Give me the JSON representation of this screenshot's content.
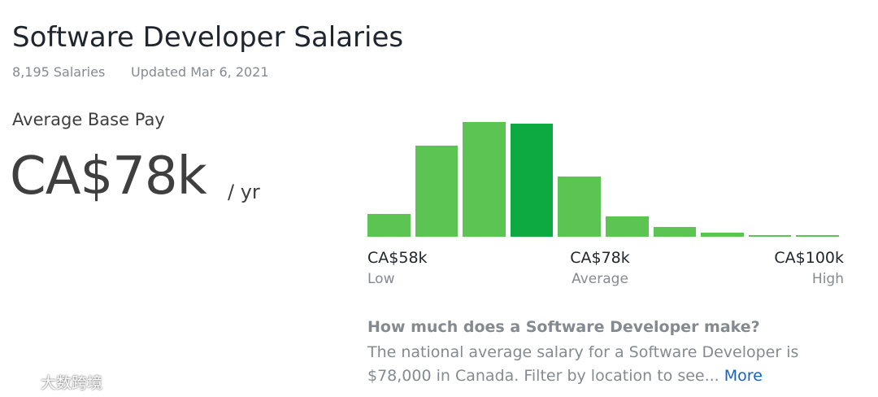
{
  "header": {
    "title": "Software Developer Salaries",
    "count": "8,195 Salaries",
    "updated": "Updated Mar 6, 2021"
  },
  "pay": {
    "label": "Average Base Pay",
    "amount": "CA$78k",
    "unit": "/ yr"
  },
  "histogram": {
    "values": [
      26,
      104,
      131,
      129,
      69,
      23,
      11,
      5,
      2,
      2
    ],
    "highlight": 3,
    "color": "#5bc452",
    "highlight_color": "#0caa41",
    "markers": [
      {
        "amount": "CA$58k",
        "label": "Low"
      },
      {
        "amount": "CA$78k",
        "label": "Average"
      },
      {
        "amount": "CA$100k",
        "label": "High"
      }
    ]
  },
  "description": {
    "question": "How much does a Software Developer make?",
    "text": "The national average salary for a Software Developer is $78,000 in Canada. Filter by location to see...",
    "link": "More"
  },
  "watermark": "大数跨境"
}
